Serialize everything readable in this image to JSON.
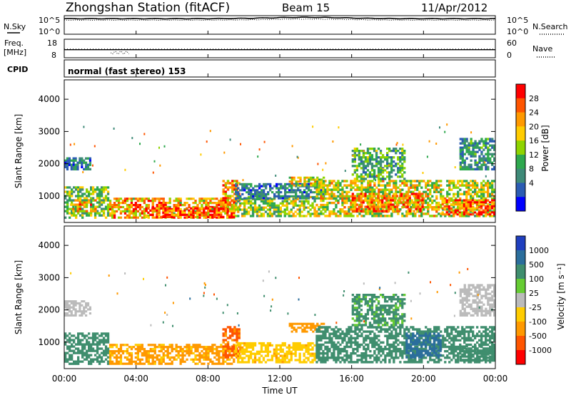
{
  "header": {
    "title": "Zhongshan Station (fitACF)",
    "beam": "Beam 15",
    "date": "11/Apr/2012"
  },
  "noise_panel": {
    "left_label": "N.Sky",
    "right_label": "N.Search",
    "ticks": [
      "10^5",
      "10^0"
    ]
  },
  "freq_panel": {
    "left_label_1": "Freq.",
    "left_label_2": "[MHz]",
    "left_ticks": [
      "18",
      "8"
    ],
    "right_label": "Nave",
    "right_ticks": [
      "60",
      "0"
    ]
  },
  "cpid": {
    "label": "CPID",
    "text": "normal (fast stereo) 153"
  },
  "power_panel": {
    "ylabel": "Slant Range [km]",
    "colorbar_label": "Power [dB]",
    "colorbar_ticks": [
      "28",
      "24",
      "20",
      "16",
      "12",
      "8",
      "4"
    ],
    "colorbar_colors": [
      "#ff0000",
      "#ff5500",
      "#ff9900",
      "#ffcc00",
      "#8fd400",
      "#2ea84e",
      "#3e8a78",
      "#2b5cb3",
      "#0000ff"
    ]
  },
  "velocity_panel": {
    "ylabel": "Slant Range [km]",
    "colorbar_label": "Velocity [m s⁻¹]",
    "colorbar_ticks": [
      "1000",
      "500",
      "100",
      "25",
      "-25",
      "-100",
      "-500",
      "-1000"
    ],
    "colorbar_colors": [
      "#1f3fbf",
      "#2b6e9c",
      "#3f8e6e",
      "#66cc33",
      "#bbbbbb",
      "#ffcc00",
      "#ff9900",
      "#ff5500",
      "#ff0000"
    ]
  },
  "x_axis": {
    "label": "Time UT",
    "ticks": [
      "00:00",
      "04:00",
      "08:00",
      "12:00",
      "16:00",
      "20:00",
      "00:00"
    ]
  },
  "chart_data": {
    "type": "heatmap",
    "x": [
      0,
      4,
      8,
      12,
      16,
      20,
      24
    ],
    "xlim": [
      0,
      24
    ],
    "ylim": [
      180,
      4600
    ],
    "yticks": [
      1000,
      2000,
      3000,
      4000
    ],
    "noise": {
      "ylim_log10": [
        0,
        5
      ],
      "sky_log10": 4.2,
      "search_log10": 3.8
    },
    "freq": {
      "ylim": [
        8,
        18
      ],
      "value": 12.3,
      "nave": 33
    },
    "power": {
      "blobs": [
        {
          "t0": 0.0,
          "t1": 2.5,
          "r0": 300,
          "r1": 1300,
          "v": 14
        },
        {
          "t0": 0.2,
          "t1": 1.8,
          "r0": 500,
          "r1": 900,
          "v": 22
        },
        {
          "t0": 2.5,
          "t1": 9.5,
          "r0": 300,
          "r1": 950,
          "v": 22
        },
        {
          "t0": 4.5,
          "t1": 9.5,
          "r0": 320,
          "r1": 650,
          "v": 28
        },
        {
          "t0": 8.8,
          "t1": 9.8,
          "r0": 500,
          "r1": 1500,
          "v": 24
        },
        {
          "t0": 9.5,
          "t1": 14.0,
          "r0": 350,
          "r1": 1000,
          "v": 16
        },
        {
          "t0": 9.5,
          "t1": 14.5,
          "r0": 900,
          "r1": 1400,
          "v": 8
        },
        {
          "t0": 14.0,
          "t1": 24.0,
          "r0": 350,
          "r1": 1500,
          "v": 18
        },
        {
          "t0": 16.0,
          "t1": 20.0,
          "r0": 500,
          "r1": 1100,
          "v": 24
        },
        {
          "t0": 21.0,
          "t1": 24.0,
          "r0": 400,
          "r1": 900,
          "v": 26
        },
        {
          "t0": 22.0,
          "t1": 24.0,
          "r0": 1800,
          "r1": 2800,
          "v": 10
        },
        {
          "t0": 0.0,
          "t1": 1.5,
          "r0": 1800,
          "r1": 2200,
          "v": 8
        },
        {
          "t0": 16.0,
          "t1": 19.0,
          "r0": 1500,
          "r1": 2500,
          "v": 12
        },
        {
          "t0": 12.5,
          "t1": 14.5,
          "r0": 1300,
          "r1": 1600,
          "v": 18
        }
      ],
      "range": [
        0,
        32
      ]
    },
    "velocity": {
      "blobs": [
        {
          "t0": 0.0,
          "t1": 2.5,
          "r0": 300,
          "r1": 1300,
          "v": 150
        },
        {
          "t0": 0.0,
          "t1": 1.5,
          "r0": 1800,
          "r1": 2300,
          "v": 0
        },
        {
          "t0": 2.5,
          "t1": 9.5,
          "r0": 300,
          "r1": 950,
          "v": -120
        },
        {
          "t0": 8.8,
          "t1": 9.8,
          "r0": 500,
          "r1": 1500,
          "v": -600
        },
        {
          "t0": 9.5,
          "t1": 14.0,
          "r0": 350,
          "r1": 1000,
          "v": -80
        },
        {
          "t0": 12.5,
          "t1": 14.5,
          "r0": 1300,
          "r1": 1600,
          "v": -150
        },
        {
          "t0": 14.0,
          "t1": 24.0,
          "r0": 350,
          "r1": 1500,
          "v": 200
        },
        {
          "t0": 16.0,
          "t1": 19.0,
          "r0": 1500,
          "r1": 2500,
          "v": 120
        },
        {
          "t0": 19.0,
          "t1": 21.0,
          "r0": 500,
          "r1": 1300,
          "v": 800
        },
        {
          "t0": 22.0,
          "t1": 24.0,
          "r0": 1800,
          "r1": 2800,
          "v": 0
        },
        {
          "t0": 22.0,
          "t1": 24.0,
          "r0": 400,
          "r1": 900,
          "v": 300
        }
      ]
    }
  }
}
